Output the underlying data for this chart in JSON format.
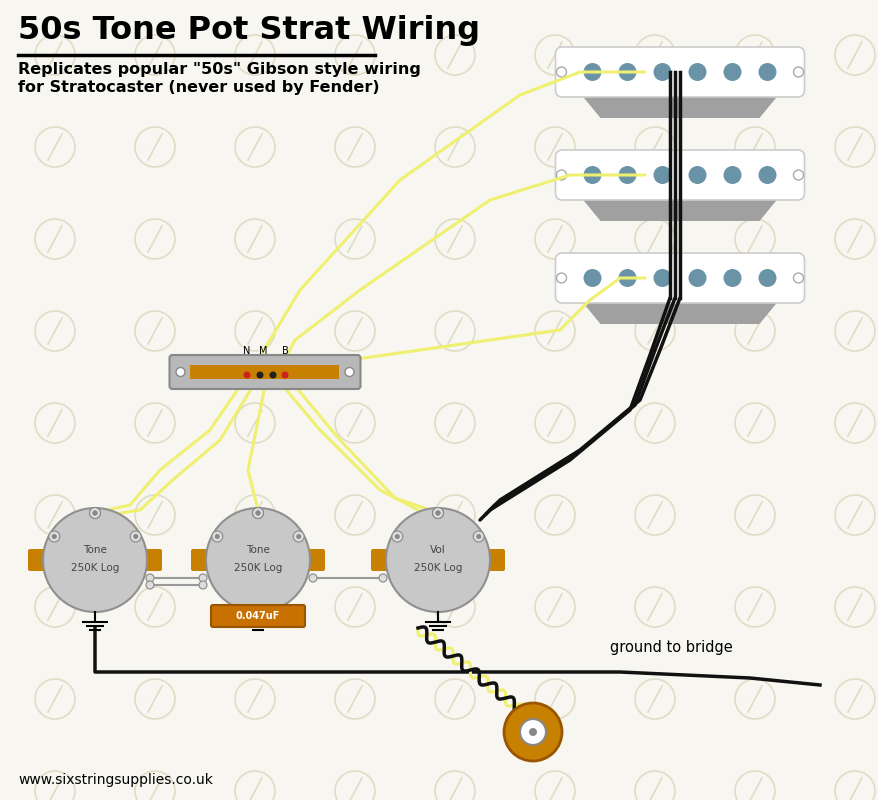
{
  "title": "50s Tone Pot Strat Wiring",
  "subtitle1": "Replicates popular \"50s\" Gibson style wiring",
  "subtitle2": "for Stratocaster (never used by Fender)",
  "footer": "www.sixstringsupplies.co.uk",
  "bg_color": "#f7f6f0",
  "watermark_color": "#ddd9c0",
  "wire_yellow": "#f0f070",
  "wire_black": "#111111",
  "wire_gray": "#999999",
  "pickup_dot_color": "#6b93a8",
  "pot_color": "#c8c8c8",
  "pot_tab_color": "#c88000",
  "switch_body_color": "#b8b8b8",
  "switch_orange": "#c88000",
  "cap_color": "#c87000",
  "cap_label": "0.047uF",
  "jack_color": "#c88000",
  "ground_label": "ground to bridge",
  "label_tone": "Tone",
  "label_250k": "250K Log",
  "label_vol": "Vol"
}
